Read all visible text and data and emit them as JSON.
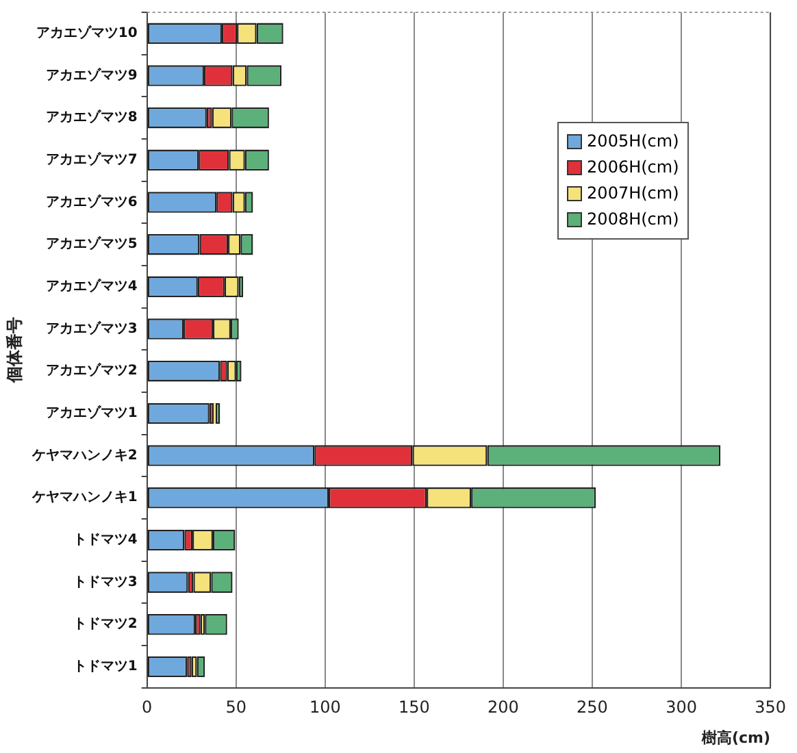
{
  "chart_data": {
    "type": "bar",
    "orientation": "horizontal",
    "stacked": true,
    "categories": [
      "アカエゾマツ10",
      "アカエゾマツ9",
      "アカエゾマツ8",
      "アカエゾマツ7",
      "アカエゾマツ6",
      "アカエゾマツ5",
      "アカエゾマツ4",
      "アカエゾマツ3",
      "アカエゾマツ2",
      "アカエゾマツ1",
      "ケヤマハンノキ2",
      "ケヤマハンノキ1",
      "トドマツ4",
      "トドマツ3",
      "トドマツ2",
      "トドマツ1"
    ],
    "series": [
      {
        "name": "2005H(cm)",
        "color": "#6fa8dc",
        "values": [
          42,
          32,
          33.5,
          29,
          39,
          29.5,
          28.5,
          20.5,
          41,
          35,
          94,
          102,
          21,
          23,
          27,
          22.5
        ]
      },
      {
        "name": "2006H(cm)",
        "color": "#e0303a",
        "values": [
          8.5,
          16,
          3,
          17,
          9,
          16,
          15,
          16.5,
          4,
          2.5,
          55,
          55,
          4.5,
          3,
          3,
          2.5
        ]
      },
      {
        "name": "2007H(cm)",
        "color": "#f5e27a",
        "values": [
          11,
          8,
          11,
          9,
          7,
          7,
          8,
          10,
          5,
          1,
          42,
          25,
          11.5,
          10,
          2.5,
          3
        ]
      },
      {
        "name": "2008H(cm)",
        "color": "#5cb07a",
        "values": [
          15,
          19.5,
          21,
          13.5,
          4.5,
          7,
          2.5,
          4.5,
          3,
          2.5,
          131,
          70,
          12.5,
          12,
          12.5,
          4.5
        ]
      }
    ],
    "xlim": [
      0,
      350
    ],
    "xticks": [
      0,
      50,
      100,
      150,
      200,
      250,
      300,
      350
    ],
    "xlabel": "樹高(cm)",
    "ylabel": "個体番号",
    "grid": "x",
    "legend": "top right"
  }
}
